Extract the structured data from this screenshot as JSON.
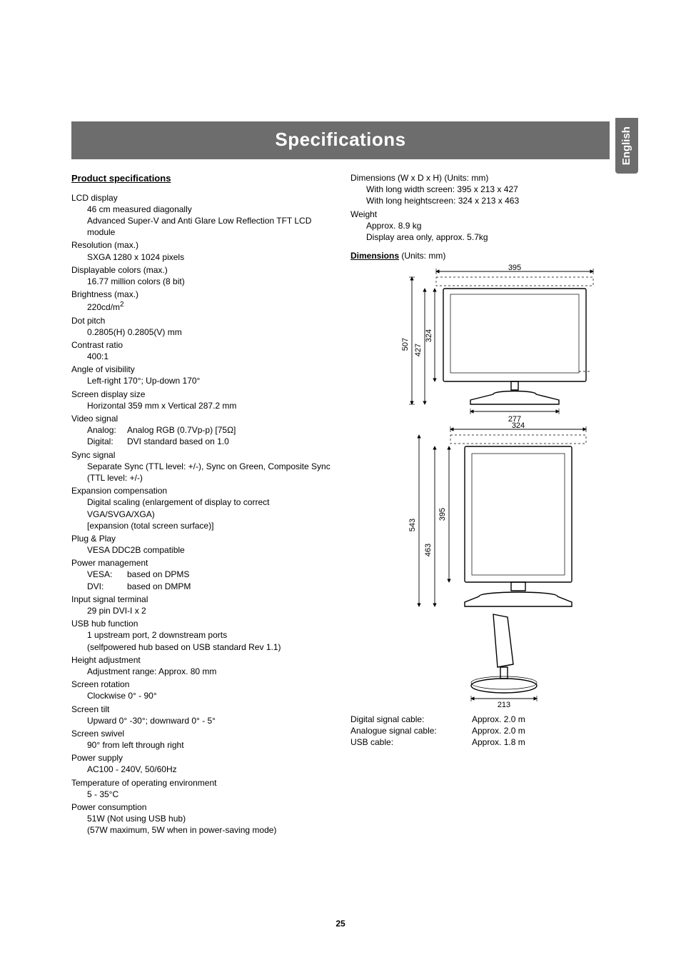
{
  "page_number": "25",
  "side_tab": "English",
  "banner_title": "Specifications",
  "left": {
    "heading": "Product specifications",
    "items": [
      {
        "k": "LCD display",
        "v": [
          "46 cm measured diagonally",
          "Advanced Super-V and Anti Glare Low Reflection TFT LCD module"
        ]
      },
      {
        "k": "Resolution (max.)",
        "v": [
          "SXGA 1280 x 1024 pixels"
        ]
      },
      {
        "k": "Displayable colors (max.)",
        "v": [
          "16.77 million colors (8 bit)"
        ]
      },
      {
        "k": "Brightness (max.)",
        "v_html": [
          "220cd/m<sup>2</sup>"
        ]
      },
      {
        "k": "Dot pitch",
        "v": [
          "0.2805(H)  0.2805(V) mm"
        ]
      },
      {
        "k": "Contrast ratio",
        "v": [
          "400:1"
        ]
      },
      {
        "k": "Angle of visibility",
        "v": [
          "Left-right 170°; Up-down 170°"
        ]
      },
      {
        "k": "Screen display size",
        "v": [
          "Horizontal 359 mm x Vertical 287.2 mm"
        ]
      },
      {
        "k": "Video signal",
        "rows": [
          {
            "lab": "Analog:",
            "txt": "Analog RGB (0.7Vp-p) [75Ω]"
          },
          {
            "lab": "Digital:",
            "txt": "DVI standard based on 1.0"
          }
        ]
      },
      {
        "k": "Sync signal",
        "v": [
          "Separate Sync (TTL level: +/-), Sync on Green, Composite Sync (TTL level: +/-)"
        ]
      },
      {
        "k": "Expansion compensation",
        "v": [
          "Digital scaling (enlargement of display to correct VGA/SVGA/XGA)",
          "[expansion (total screen surface)]"
        ]
      },
      {
        "k": "Plug & Play",
        "v": [
          "VESA DDC2B compatible"
        ]
      },
      {
        "k": "Power management",
        "rows": [
          {
            "lab": "VESA:",
            "txt": "based on DPMS"
          },
          {
            "lab": "DVI:",
            "txt": "based on DMPM"
          }
        ]
      },
      {
        "k": "Input signal terminal",
        "v": [
          "29 pin DVI-I x 2"
        ]
      },
      {
        "k": "USB hub function",
        "v": [
          "1 upstream port, 2 downstream ports",
          "(selfpowered hub based on USB standard Rev 1.1)"
        ]
      },
      {
        "k": "Height adjustment",
        "v": [
          "Adjustment range: Approx. 80 mm"
        ]
      },
      {
        "k": "Screen rotation",
        "v": [
          "Clockwise 0° - 90°"
        ]
      },
      {
        "k": "Screen tilt",
        "v": [
          "Upward 0° -30°; downward 0° - 5°"
        ]
      },
      {
        "k": "Screen swivel",
        "v": [
          "90° from left through right"
        ]
      },
      {
        "k": "Power supply",
        "v": [
          "AC100 - 240V, 50/60Hz"
        ]
      },
      {
        "k": "Temperature of operating environment",
        "v": [
          "5 - 35°C"
        ]
      },
      {
        "k": "Power consumption",
        "v": [
          "51W (Not using USB hub)",
          "(57W maximum, 5W when in power-saving mode)"
        ]
      }
    ]
  },
  "right": {
    "top_items": [
      {
        "k": "Dimensions (W x D x H) (Units: mm)",
        "v": [
          "With long width screen: 395 x 213 x 427",
          "With long heightscreen: 324 x 213 x 463"
        ]
      },
      {
        "k": "Weight",
        "v": [
          "Approx. 8.9 kg",
          "Display area only, approx. 5.7kg"
        ]
      }
    ],
    "dimensions_heading_prefix": "Dimensions",
    "dimensions_heading_suffix": " (Units: mm)",
    "cables": [
      {
        "lab": "Digital signal cable:",
        "val": "Approx. 2.0 m"
      },
      {
        "lab": "Analogue signal cable:",
        "val": "Approx. 2.0 m"
      },
      {
        "lab": "USB cable:",
        "val": "Approx. 1.8 m"
      }
    ],
    "diagram": {
      "labels": {
        "w1": "395",
        "h1a": "507",
        "h1b": "427",
        "h1c": "324",
        "d1": "277",
        "w2": "324",
        "h2a": "543",
        "h2b": "463",
        "h2c": "395",
        "d2": "213"
      }
    }
  }
}
